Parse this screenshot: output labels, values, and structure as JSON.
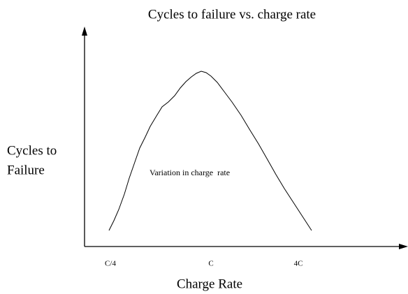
{
  "title": "Cycles to failure vs. charge rate",
  "y_axis_label": [
    "Cycles to",
    "Failure"
  ],
  "x_axis_label": "Charge Rate",
  "x_tick_labels": [
    "C/4",
    "C",
    "4C"
  ],
  "annotation": "Variation in charge  rate"
}
